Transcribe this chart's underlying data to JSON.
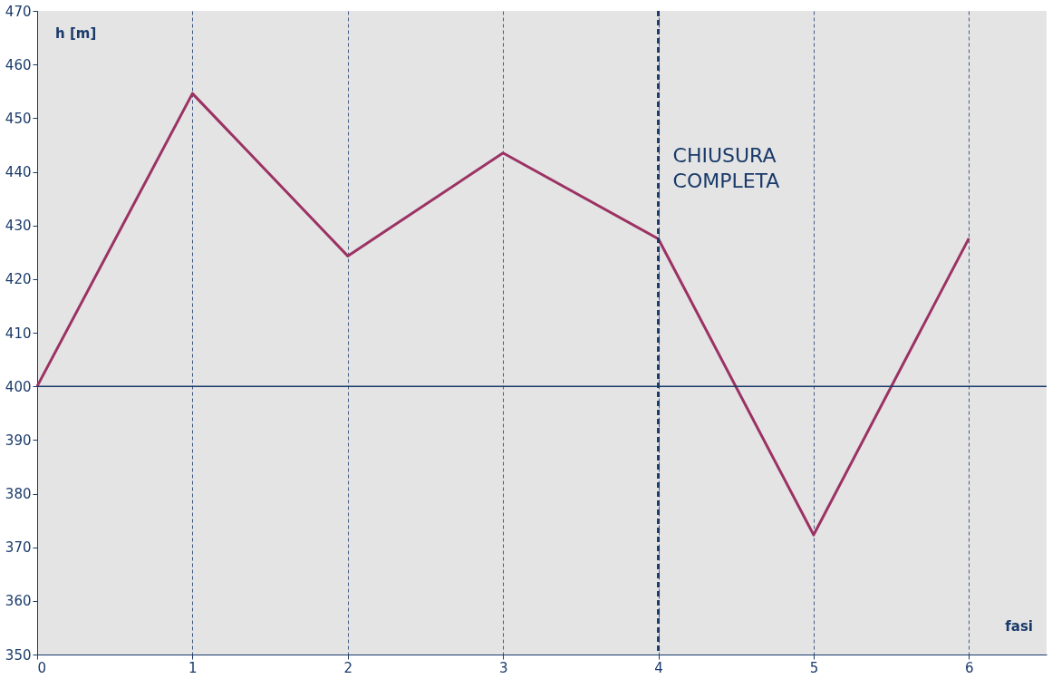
{
  "chart_data": {
    "type": "line",
    "xlabel": "fasi",
    "ylabel": "h [m]",
    "x": [
      0,
      1,
      2,
      3,
      4,
      5,
      6
    ],
    "series": [
      {
        "color": "#9b3263",
        "values": [
          400,
          454.6,
          424.3,
          443.5,
          427.5,
          372.3,
          427.6
        ]
      }
    ],
    "xlim": [
      0,
      6.5
    ],
    "xticks": [
      0,
      1,
      2,
      3,
      4,
      5,
      6
    ],
    "ylim": [
      350,
      470
    ],
    "yticks": [
      350,
      360,
      370,
      380,
      390,
      400,
      410,
      420,
      430,
      440,
      450,
      460,
      470
    ],
    "ref_lines": [
      {
        "axis": "y",
        "value": 400,
        "label": null,
        "color": "#1a3a6a",
        "line_style": "solid"
      },
      {
        "axis": "x",
        "value": 4,
        "label": "CHIUSURA\nCOMPLETA",
        "color": "#1a3a6a",
        "line_style": "dashed"
      }
    ],
    "grid": "x",
    "marker": "none",
    "line_style": "solid"
  }
}
